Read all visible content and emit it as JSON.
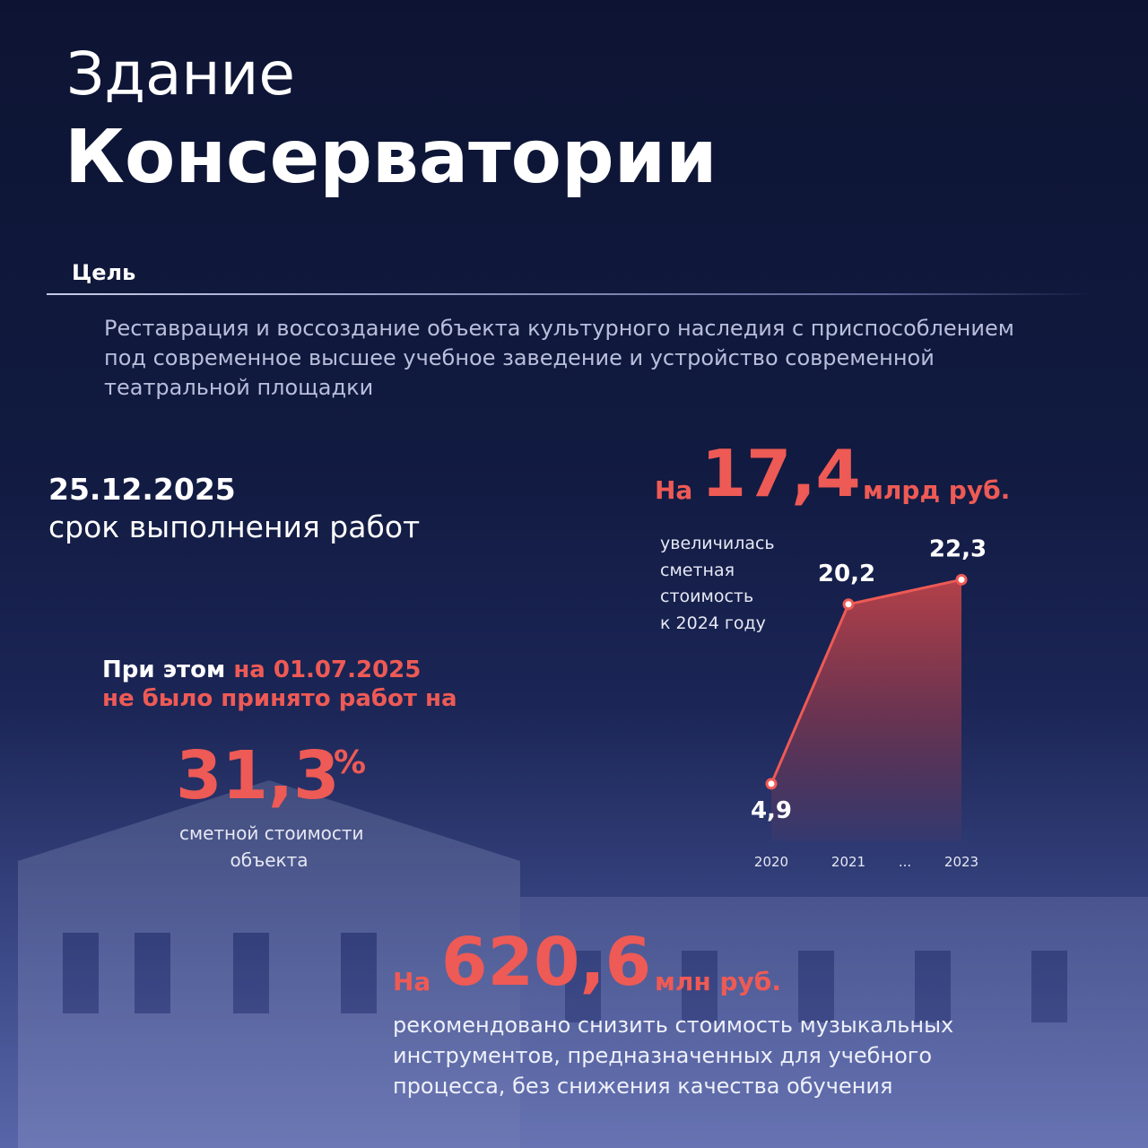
{
  "header": {
    "title_line1": "Здание",
    "title_line2": "Консерватории"
  },
  "goal": {
    "label": "Цель",
    "lines": [
      "Реставрация и воссоздание объекта культурного наследия с приспособлением",
      "под современное высшее учебное заведение и устройство современной",
      "театральной площадки"
    ]
  },
  "deadline": {
    "date": "25.12.2025",
    "caption": "срок выполнения работ"
  },
  "increase": {
    "prefix": "На",
    "amount": "17,4",
    "unit": "млрд руб.",
    "caption_lines": [
      "увеличилась",
      "сметная",
      "стоимость",
      "к 2024 году"
    ]
  },
  "unaccepted": {
    "lead": "При этом",
    "date": "на 01.07.2025",
    "line2": "не было принято работ на",
    "amount": "31,3",
    "unit": "%",
    "caption_lines": [
      "сметной стоимости",
      "объекта"
    ]
  },
  "reduction": {
    "prefix": "На",
    "amount": "620,6",
    "unit": "млн руб.",
    "lines": [
      "рекомендовано снизить стоимость музыкальных",
      "инструментов, предназначенных для учебного",
      "процесса, без снижения качества обучения"
    ]
  },
  "chart_data": {
    "type": "area",
    "categories": [
      "2020",
      "2021",
      "2023"
    ],
    "gap_label": "...",
    "values": [
      4.9,
      20.2,
      22.3
    ],
    "value_labels": [
      "4,9",
      "20,2",
      "22,3"
    ],
    "color": "#ee5a55",
    "ylim": [
      0,
      25
    ]
  }
}
